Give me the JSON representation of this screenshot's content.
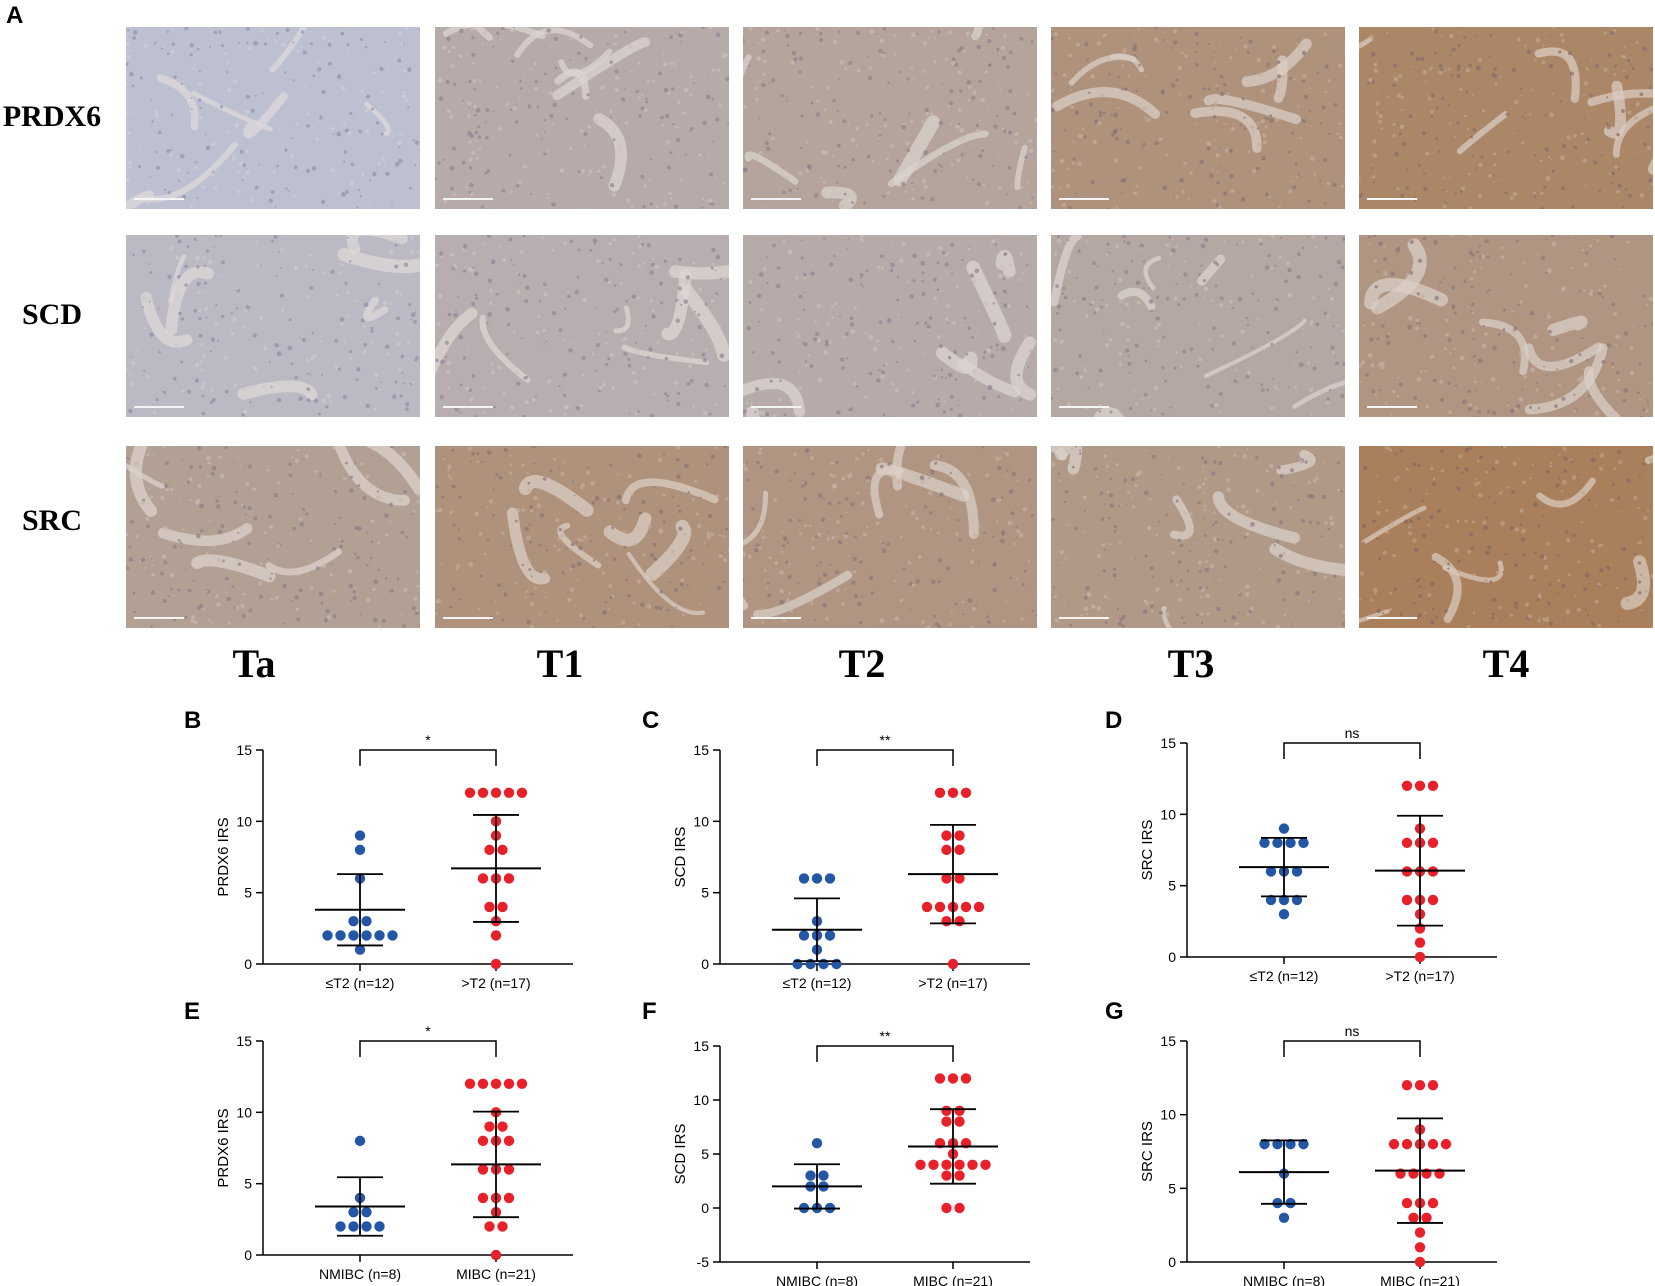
{
  "figure": {
    "panel_letters": [
      "A",
      "B",
      "C",
      "D",
      "E",
      "F",
      "G"
    ],
    "micrograph_rows": [
      "PRDX6",
      "SCD",
      "SRC"
    ],
    "micrograph_cols": [
      "Ta",
      "T1",
      "T2",
      "T3",
      "T4"
    ]
  },
  "colors": {
    "low_group": "#2456a6",
    "high_group": "#e8202a",
    "hematoxylin": "#b9b6d4",
    "dab_brown": "#a57c55"
  },
  "chart_data": [
    {
      "panel": "B",
      "type": "scatter",
      "ylabel": "PRDX6 IRS",
      "ylim": [
        0,
        15
      ],
      "yticks": [
        "0",
        "5",
        "10",
        "15"
      ],
      "significance": "*",
      "categories": [
        "≤T2 (n=12)",
        ">T2 (n=17)"
      ],
      "series": [
        {
          "values": [
            9,
            8,
            6,
            3,
            3,
            2,
            2,
            2,
            2,
            2,
            2,
            1
          ],
          "mean": 3.8,
          "sd": 2.5
        },
        {
          "values": [
            12,
            12,
            12,
            12,
            12,
            10,
            9,
            8,
            8,
            6,
            6,
            6,
            4,
            4,
            3,
            2,
            0
          ],
          "mean": 6.7,
          "sd": 3.75
        }
      ]
    },
    {
      "panel": "C",
      "type": "scatter",
      "ylabel": "SCD IRS",
      "ylim": [
        0,
        15
      ],
      "yticks": [
        "0",
        "5",
        "10",
        "15"
      ],
      "significance": "**",
      "categories": [
        "≤T2 (n=12)",
        ">T2 (n=17)"
      ],
      "series": [
        {
          "values": [
            6,
            6,
            6,
            3,
            2,
            2,
            2,
            1,
            0,
            0,
            0,
            0
          ],
          "mean": 2.4,
          "sd": 2.2
        },
        {
          "values": [
            12,
            12,
            12,
            9,
            9,
            8,
            8,
            6,
            6,
            4,
            4,
            4,
            4,
            4,
            3,
            3,
            0
          ],
          "mean": 6.3,
          "sd": 3.45
        }
      ]
    },
    {
      "panel": "D",
      "type": "scatter",
      "ylabel": "SRC IRS",
      "ylim": [
        0,
        15
      ],
      "yticks": [
        "0",
        "5",
        "10",
        "15"
      ],
      "significance": "ns",
      "categories": [
        "≤T2 (n=12)",
        ">T2 (n=17)"
      ],
      "series": [
        {
          "values": [
            9,
            8,
            8,
            8,
            8,
            6,
            6,
            6,
            4,
            4,
            4,
            3
          ],
          "mean": 6.3,
          "sd": 2.05
        },
        {
          "values": [
            12,
            12,
            12,
            9,
            8,
            8,
            8,
            6,
            6,
            6,
            4,
            4,
            4,
            3,
            2,
            1,
            0
          ],
          "mean": 6.05,
          "sd": 3.85
        }
      ]
    },
    {
      "panel": "E",
      "type": "scatter",
      "ylabel": "PRDX6 IRS",
      "ylim": [
        0,
        15
      ],
      "yticks": [
        "0",
        "5",
        "10",
        "15"
      ],
      "significance": "*",
      "categories": [
        "NMIBC (n=8)",
        "MIBC (n=21)"
      ],
      "series": [
        {
          "values": [
            8,
            4,
            3,
            3,
            2,
            2,
            2,
            2
          ],
          "mean": 3.4,
          "sd": 2.05
        },
        {
          "values": [
            12,
            12,
            12,
            12,
            12,
            10,
            9,
            9,
            8,
            8,
            8,
            6,
            6,
            6,
            4,
            4,
            4,
            3,
            2,
            2,
            0
          ],
          "mean": 6.35,
          "sd": 3.7
        }
      ]
    },
    {
      "panel": "F",
      "type": "scatter",
      "ylabel": "SCD IRS",
      "ylim": [
        -5,
        15
      ],
      "yticks": [
        "-5",
        "0",
        "5",
        "10",
        "15"
      ],
      "significance": "**",
      "categories": [
        "NMIBC (n=8)",
        "MIBC (n=21)"
      ],
      "series": [
        {
          "values": [
            6,
            3,
            3,
            2,
            2,
            0,
            0,
            0
          ],
          "mean": 2.0,
          "sd": 2.05
        },
        {
          "values": [
            12,
            12,
            12,
            9,
            9,
            8,
            8,
            6,
            6,
            6,
            5,
            4,
            4,
            4,
            4,
            4,
            4,
            3,
            3,
            0,
            0
          ],
          "mean": 5.7,
          "sd": 3.45
        }
      ]
    },
    {
      "panel": "G",
      "type": "scatter",
      "ylabel": "SRC IRS",
      "ylim": [
        0,
        15
      ],
      "yticks": [
        "0",
        "5",
        "10",
        "15"
      ],
      "significance": "ns",
      "categories": [
        "NMIBC (n=8)",
        "MIBC (n=21)"
      ],
      "series": [
        {
          "values": [
            8,
            8,
            8,
            8,
            6,
            4,
            4,
            3
          ],
          "mean": 6.1,
          "sd": 2.15
        },
        {
          "values": [
            12,
            12,
            12,
            9,
            8,
            8,
            8,
            8,
            8,
            6,
            6,
            6,
            6,
            4,
            4,
            4,
            3,
            3,
            2,
            1,
            0
          ],
          "mean": 6.2,
          "sd": 3.55
        }
      ]
    }
  ]
}
